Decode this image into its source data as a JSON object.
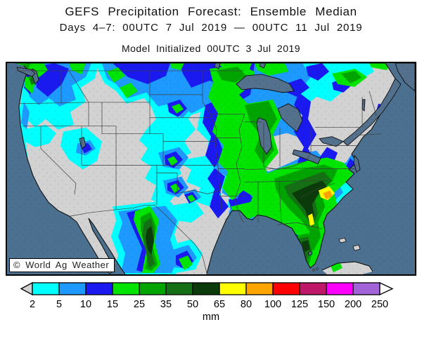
{
  "header": {
    "title": "GEFS Precipitation Forecast: Ensemble Median",
    "subtitle": "Days 4–7: 00UTC 7 Jul 2019 — 00UTC 11 Jul 2019",
    "initialized": "Model Initialized 00UTC 3 Jul 2019"
  },
  "map": {
    "watermark": "© World Ag Weather",
    "colors": {
      "ocean": "#4C7190",
      "land": "#D2D2D2",
      "lake": "#53708C",
      "coast": "#101010",
      "state_border": "#3D3D3D"
    }
  },
  "colorbar": {
    "unit": "mm",
    "levels_mm": [
      2,
      5,
      10,
      15,
      25,
      35,
      50,
      65,
      80,
      100,
      125,
      150,
      200,
      250
    ],
    "tick_labels": [
      "2",
      "5",
      "10",
      "15",
      "25",
      "35",
      "50",
      "65",
      "80",
      "100",
      "125",
      "150",
      "200",
      "250"
    ],
    "band_colors": [
      "#00FFFF",
      "#1E9AFF",
      "#1A1AF0",
      "#00E400",
      "#00A400",
      "#157015",
      "#0B3B0B",
      "#FFFF00",
      "#FFA500",
      "#FF0000",
      "#C01868",
      "#FF00FF",
      "#A263D8"
    ],
    "arrow_left_color": "#D2D2D2",
    "arrow_right_color": "#FFFFFF"
  }
}
